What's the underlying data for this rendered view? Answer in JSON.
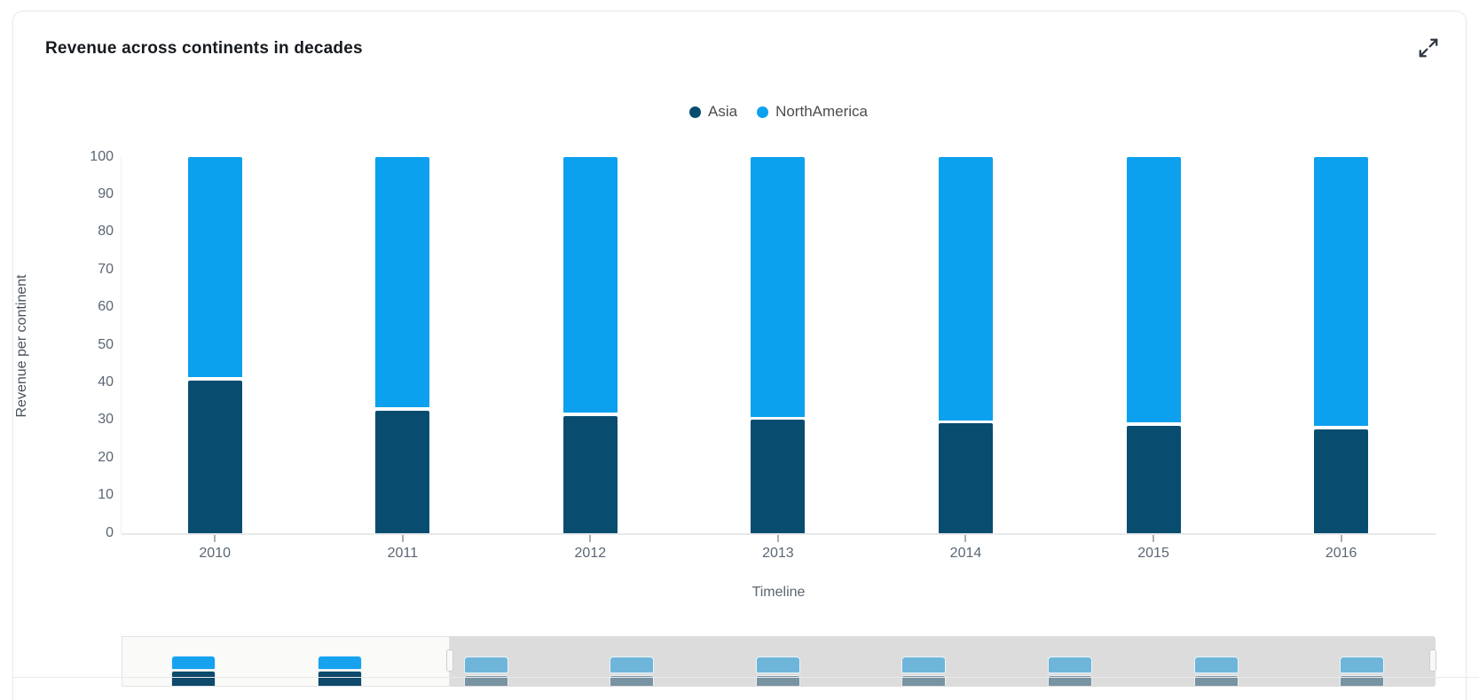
{
  "card": {
    "title": "Revenue across continents in decades"
  },
  "controls": {
    "expand_icon": "expand-diagonal-arrows"
  },
  "chart_data": {
    "type": "bar",
    "stacked": true,
    "title": "Revenue across continents in decades",
    "xlabel": "Timeline",
    "ylabel": "Revenue per continent",
    "categories": [
      "2010",
      "2011",
      "2012",
      "2013",
      "2014",
      "2015",
      "2016"
    ],
    "series": [
      {
        "name": "Asia",
        "color": "#084d70",
        "values": [
          41,
          33,
          31.5,
          30.5,
          29.5,
          29,
          28
        ]
      },
      {
        "name": "NorthAmerica",
        "color": "#0ca1ee",
        "values": [
          59,
          67,
          68.5,
          69.5,
          70.5,
          71,
          72
        ]
      }
    ],
    "ylim": [
      0,
      100
    ],
    "ytick_step": 10,
    "grid": false,
    "legend_position": "top"
  },
  "navigator": {
    "bar_count": 9,
    "selected_count": 2,
    "active_colors": {
      "light": "#16a2ee",
      "dark": "#0d4a6b"
    },
    "muted_colors": {
      "light": "#6fb5da",
      "dark": "#7894a2"
    },
    "background_selected": "#fafaf9",
    "background_unselected": "#dcdcdc"
  },
  "colors": {
    "title_text": "#161a1e",
    "axis_text": "#5a6673",
    "legend_text": "#4c4c4c",
    "axis_line": "#e7e9eb",
    "card_border": "#eaeaea"
  }
}
